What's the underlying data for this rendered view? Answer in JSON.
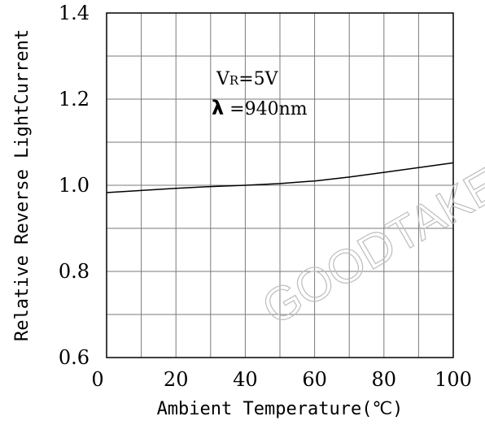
{
  "chart_data": {
    "type": "line",
    "title": "",
    "xlabel": "Ambient Temperature(℃)",
    "ylabel": "Relative Reverse LightCurrent",
    "xlim": [
      0,
      100
    ],
    "ylim": [
      0.6,
      1.4
    ],
    "x_ticks": [
      "0",
      "20",
      "40",
      "60",
      "80",
      "100"
    ],
    "y_ticks": [
      "0.6",
      "0.8",
      "1.0",
      "1.2",
      "1.4"
    ],
    "grid": true,
    "series": [
      {
        "x": [
          0,
          10,
          20,
          30,
          40,
          50,
          60,
          70,
          80,
          90,
          100
        ],
        "y": [
          0.983,
          0.988,
          0.993,
          0.997,
          1.0,
          1.004,
          1.01,
          1.019,
          1.03,
          1.041,
          1.052
        ]
      }
    ],
    "annotations": {
      "condition_1_prefix": "V",
      "condition_1_sub": "R",
      "condition_1_value": "=5V",
      "condition_2_symbol": "λ",
      "condition_2_value": " =940nm"
    },
    "watermark": "GOODTAKE",
    "line_color": "#000000"
  }
}
